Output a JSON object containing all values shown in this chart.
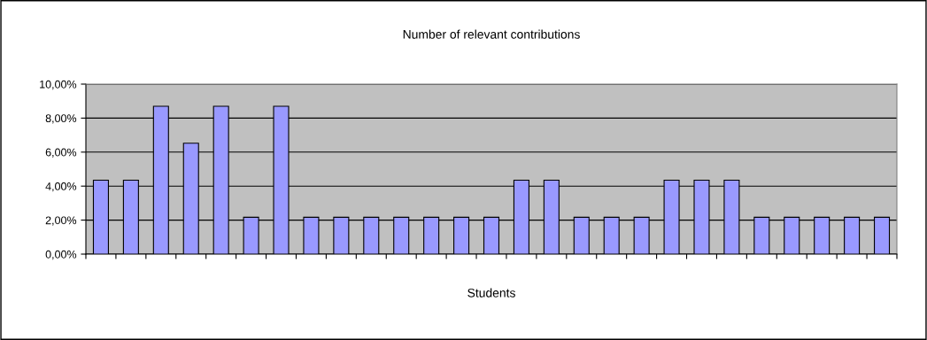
{
  "chart_data": {
    "type": "bar",
    "title": "Number of relevant contributions",
    "xlabel": "Students",
    "categories": [
      null,
      null,
      null,
      null,
      null,
      null,
      null,
      null,
      null,
      null,
      null,
      null,
      null,
      null,
      null,
      null,
      null,
      null,
      null,
      null,
      null,
      null,
      null,
      null,
      null,
      null,
      null
    ],
    "values": [
      4.35,
      4.35,
      8.7,
      6.52,
      8.7,
      2.17,
      8.7,
      2.17,
      2.17,
      2.17,
      2.17,
      2.17,
      2.17,
      2.17,
      4.35,
      4.35,
      2.17,
      2.17,
      2.17,
      4.35,
      4.35,
      4.35,
      2.17,
      2.17,
      2.17,
      2.17,
      2.17
    ],
    "color": "#9999ff",
    "ylim": [
      0,
      10
    ],
    "yticks": [
      {
        "value": 0,
        "label": "0,00%"
      },
      {
        "value": 2,
        "label": "2,00%"
      },
      {
        "value": 4,
        "label": "4,00%"
      },
      {
        "value": 6,
        "label": "6,00%"
      },
      {
        "value": 8,
        "label": "8,00%"
      },
      {
        "value": 10,
        "label": "10,00%"
      }
    ],
    "grid": "y",
    "legend": false
  }
}
